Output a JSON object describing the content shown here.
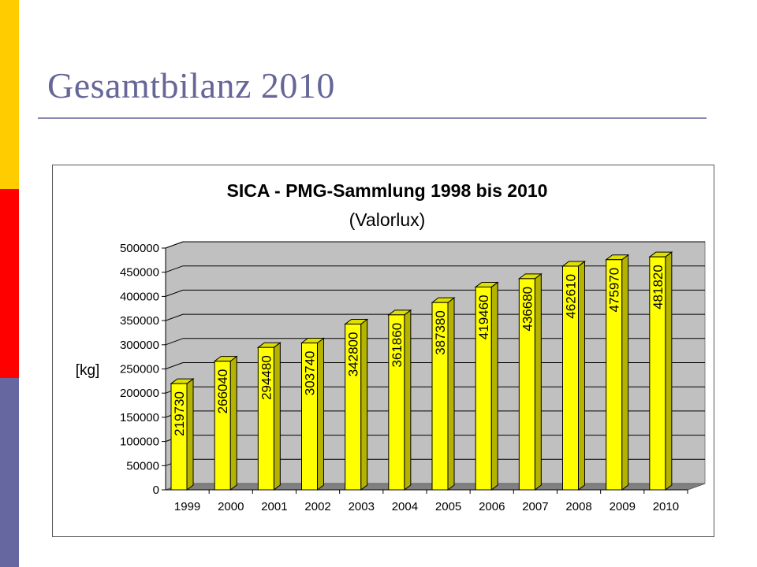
{
  "slide": {
    "title": "Gesamtbilanz 2010",
    "colors": {
      "stripe_top": "#ffcc00",
      "stripe_middle": "#ff0000",
      "stripe_bottom": "#6666a0",
      "title": "#666699"
    }
  },
  "chart_data": {
    "type": "bar",
    "title": "SICA - PMG-Sammlung 1998 bis 2010",
    "subtitle": "(Valorlux)",
    "xlabel": "",
    "ylabel": "[kg]",
    "ylim": [
      0,
      500000
    ],
    "yticks": [
      0,
      50000,
      100000,
      150000,
      200000,
      250000,
      300000,
      350000,
      400000,
      450000,
      500000
    ],
    "categories": [
      "1999",
      "2000",
      "2001",
      "2002",
      "2003",
      "2004",
      "2005",
      "2006",
      "2007",
      "2008",
      "2009",
      "2010"
    ],
    "values": [
      219730,
      266040,
      294480,
      303740,
      342800,
      361860,
      387380,
      419460,
      436680,
      462610,
      475970,
      481820
    ],
    "data_labels": true,
    "bar_style": "3d",
    "grid": "horizontal",
    "legend": "none",
    "colors": {
      "bar": "#ffff00",
      "plot_wall": "#c0c0c0",
      "floor": "#808080"
    }
  }
}
